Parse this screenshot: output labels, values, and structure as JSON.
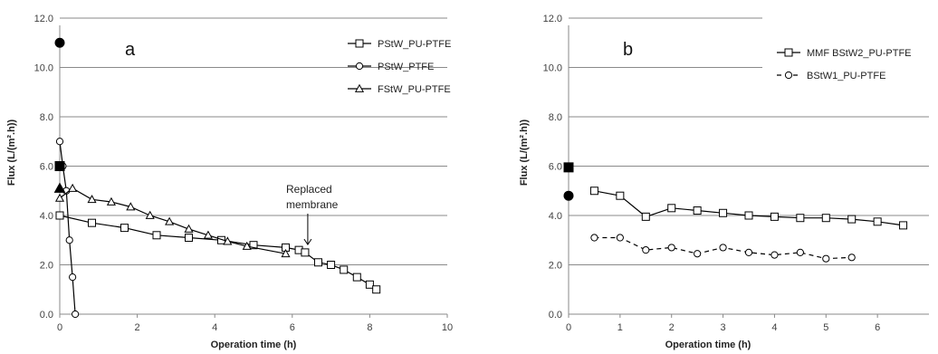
{
  "chart_data": [
    {
      "type": "line",
      "panel_label": "a",
      "xlabel": "Operation time (h)",
      "ylabel": "Flux (L/(m².h))",
      "xlim": [
        0,
        10
      ],
      "ylim": [
        0,
        12
      ],
      "x_ticks": [
        "0",
        "2",
        "4",
        "6",
        "8",
        "10"
      ],
      "y_ticks": [
        "0.0",
        "2.0",
        "4.0",
        "6.0",
        "8.0",
        "10.0",
        "12.0"
      ],
      "grid": "horizontal",
      "legend_position": "top-right",
      "series": [
        {
          "name": "PStW_PU-PTFE",
          "marker": "square-open",
          "line": "solid",
          "points": [
            [
              0.0,
              4.0
            ],
            [
              0.83,
              3.7
            ],
            [
              1.67,
              3.5
            ],
            [
              2.5,
              3.2
            ],
            [
              3.33,
              3.1
            ],
            [
              4.17,
              3.0
            ],
            [
              5.0,
              2.8
            ],
            [
              5.83,
              2.7
            ],
            [
              6.17,
              2.6
            ],
            [
              6.33,
              2.5
            ],
            [
              6.67,
              2.1
            ],
            [
              7.0,
              2.0
            ],
            [
              7.33,
              1.8
            ],
            [
              7.67,
              1.5
            ],
            [
              8.0,
              1.2
            ],
            [
              8.17,
              1.0
            ]
          ]
        },
        {
          "name": "PStW_PTFE",
          "marker": "circle-open",
          "line": "solid",
          "points": [
            [
              0.0,
              7.0
            ],
            [
              0.08,
              6.0
            ],
            [
              0.17,
              5.0
            ],
            [
              0.25,
              3.0
            ],
            [
              0.33,
              1.5
            ],
            [
              0.4,
              0.0
            ]
          ]
        },
        {
          "name": "FStW_PU-PTFE",
          "marker": "triangle-open",
          "line": "solid",
          "points": [
            [
              0.0,
              4.7
            ],
            [
              0.33,
              5.1
            ],
            [
              0.83,
              4.65
            ],
            [
              1.33,
              4.55
            ],
            [
              1.83,
              4.35
            ],
            [
              2.33,
              4.0
            ],
            [
              2.83,
              3.75
            ],
            [
              3.33,
              3.45
            ],
            [
              3.83,
              3.2
            ],
            [
              4.33,
              2.95
            ],
            [
              4.83,
              2.75
            ],
            [
              5.83,
              2.45
            ]
          ]
        }
      ],
      "filled_markers": [
        {
          "shape": "circle",
          "x": 0,
          "y": 11.0
        },
        {
          "shape": "square",
          "x": 0,
          "y": 6.0
        },
        {
          "shape": "triangle",
          "x": 0,
          "y": 5.1
        }
      ],
      "annotations": [
        {
          "lines": [
            "Replaced",
            "membrane"
          ],
          "arrow_to": [
            6.4,
            2.6
          ]
        }
      ]
    },
    {
      "type": "line",
      "panel_label": "b",
      "xlabel": "Operation time (h)",
      "ylabel": "Flux (L/(m².h))",
      "xlim": [
        0,
        7
      ],
      "ylim": [
        0,
        12
      ],
      "x_ticks": [
        "0",
        "1",
        "2",
        "3",
        "4",
        "5",
        "6"
      ],
      "y_ticks": [
        "0.0",
        "2.0",
        "4.0",
        "6.0",
        "8.0",
        "10.0",
        "12.0"
      ],
      "grid": "horizontal",
      "legend_position": "top-right",
      "series": [
        {
          "name": "MMF BStW2_PU-PTFE",
          "marker": "square-open",
          "line": "solid",
          "points": [
            [
              0.5,
              5.0
            ],
            [
              1.0,
              4.8
            ],
            [
              1.5,
              3.95
            ],
            [
              2.0,
              4.3
            ],
            [
              2.5,
              4.2
            ],
            [
              3.0,
              4.1
            ],
            [
              3.5,
              4.0
            ],
            [
              4.0,
              3.95
            ],
            [
              4.5,
              3.9
            ],
            [
              5.0,
              3.9
            ],
            [
              5.5,
              3.85
            ],
            [
              6.0,
              3.75
            ],
            [
              6.5,
              3.6
            ]
          ]
        },
        {
          "name": "BStW1_PU-PTFE",
          "marker": "circle-open",
          "line": "dashed",
          "points": [
            [
              0.5,
              3.1
            ],
            [
              1.0,
              3.1
            ],
            [
              1.5,
              2.6
            ],
            [
              2.0,
              2.7
            ],
            [
              2.5,
              2.45
            ],
            [
              3.0,
              2.7
            ],
            [
              3.5,
              2.5
            ],
            [
              4.0,
              2.4
            ],
            [
              4.5,
              2.5
            ],
            [
              5.0,
              2.25
            ],
            [
              5.5,
              2.3
            ]
          ]
        }
      ],
      "filled_markers": [
        {
          "shape": "square",
          "x": 0,
          "y": 5.95
        },
        {
          "shape": "circle",
          "x": 0,
          "y": 4.8
        }
      ]
    }
  ]
}
